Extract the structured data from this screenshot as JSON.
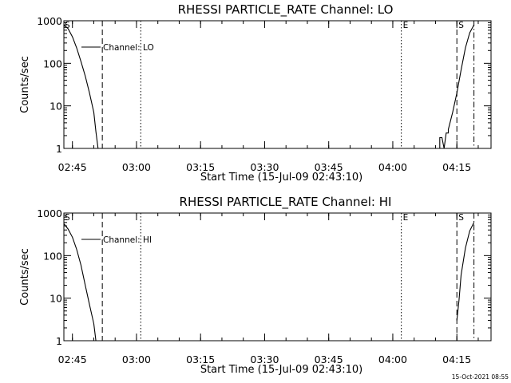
{
  "chart_data": [
    {
      "type": "line",
      "title": "RHESSI PARTICLE_RATE Channel: LO",
      "xlabel": "Start Time (15-Jul-09 02:43:10)",
      "ylabel": "Counts/sec",
      "y_scale": "log",
      "ylim": [
        1,
        1000
      ],
      "xlim": [
        "02:43",
        "04:23"
      ],
      "xtick_labels": [
        "02:45",
        "03:00",
        "03:15",
        "03:30",
        "03:45",
        "04:00",
        "04:15"
      ],
      "ytick_labels": [
        "1",
        "10",
        "100",
        "1000"
      ],
      "legend_label": "Channel: LO",
      "series": [
        {
          "name": "Channel: LO",
          "x": [
            "02:43",
            "02:44",
            "02:45",
            "02:46",
            "02:47",
            "02:48",
            "02:49",
            "02:50",
            "02:50.5",
            "02:51"
          ],
          "y": [
            800,
            650,
            420,
            230,
            110,
            50,
            20,
            7,
            2.5,
            1
          ]
        },
        {
          "name": "Channel: LO",
          "x": [
            "04:11",
            "04:11",
            "04:11.5",
            "04:12",
            "04:12.5",
            "04:13",
            "04:13",
            "04:14",
            "04:15",
            "04:16",
            "04:17",
            "04:18",
            "04:19"
          ],
          "y": [
            1,
            1.8,
            1.8,
            1,
            2.3,
            2.3,
            2.8,
            7,
            20,
            70,
            230,
            520,
            800
          ]
        }
      ],
      "vertical_markers": [
        {
          "x": "02:52",
          "style": "dashed",
          "label": ""
        },
        {
          "x": "03:01",
          "style": "dotted",
          "label": ""
        },
        {
          "x": "04:02",
          "style": "dotted",
          "label": "E"
        },
        {
          "x": "04:15",
          "style": "dashed",
          "label": "S"
        },
        {
          "x": "04:19",
          "style": "dashdot",
          "label": ""
        }
      ],
      "corner_label": "S"
    },
    {
      "type": "line",
      "title": "RHESSI PARTICLE_RATE Channel: HI",
      "xlabel": "Start Time (15-Jul-09 02:43:10)",
      "ylabel": "Counts/sec",
      "y_scale": "log",
      "ylim": [
        1,
        1000
      ],
      "xlim": [
        "02:43",
        "04:23"
      ],
      "xtick_labels": [
        "02:45",
        "03:00",
        "03:15",
        "03:30",
        "03:45",
        "04:00",
        "04:15"
      ],
      "ytick_labels": [
        "1",
        "10",
        "100",
        "1000"
      ],
      "legend_label": "Channel: HI",
      "series": [
        {
          "name": "Channel: HI",
          "x": [
            "02:43",
            "02:44",
            "02:45",
            "02:46",
            "02:47",
            "02:48",
            "02:49",
            "02:50",
            "02:50.5"
          ],
          "y": [
            560,
            420,
            270,
            140,
            60,
            20,
            7,
            2.5,
            1
          ]
        },
        {
          "name": "Channel: HI",
          "x": [
            "04:15",
            "04:15.5",
            "04:16",
            "04:17",
            "04:18",
            "04:19"
          ],
          "y": [
            3,
            9,
            35,
            150,
            380,
            600
          ]
        }
      ],
      "vertical_markers": [
        {
          "x": "02:52",
          "style": "dashed",
          "label": ""
        },
        {
          "x": "03:01",
          "style": "dotted",
          "label": ""
        },
        {
          "x": "04:02",
          "style": "dotted",
          "label": "E"
        },
        {
          "x": "04:15",
          "style": "dashed",
          "label": "S"
        },
        {
          "x": "04:19",
          "style": "dashdot",
          "label": ""
        }
      ],
      "corner_label": "S"
    }
  ],
  "footer": {
    "timestamp": "15-Oct-2021 08:55"
  }
}
